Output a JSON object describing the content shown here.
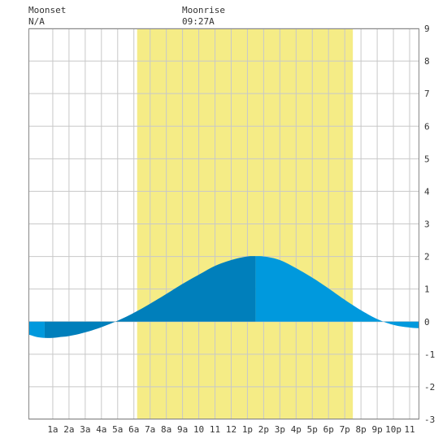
{
  "header": {
    "moonset_label": "Moonset",
    "moonset_time": "N/A",
    "moonrise_label": "Moonrise",
    "moonrise_time": "09:27A"
  },
  "chart_data": {
    "type": "area",
    "title": "",
    "xlabel": "",
    "ylabel": "",
    "x_unit": "hour of day",
    "xlim": [
      -0.5,
      23.6
    ],
    "ylim": [
      -3,
      9
    ],
    "y_ticks": [
      "9",
      "8",
      "7",
      "6",
      "5",
      "4",
      "3",
      "2",
      "1",
      "0",
      "-1",
      "-2",
      "-3"
    ],
    "x_ticks": [
      {
        "x": 1,
        "label": "1a"
      },
      {
        "x": 2,
        "label": "2a"
      },
      {
        "x": 3,
        "label": "3a"
      },
      {
        "x": 4,
        "label": "4a"
      },
      {
        "x": 5,
        "label": "5a"
      },
      {
        "x": 6,
        "label": "6a"
      },
      {
        "x": 7,
        "label": "7a"
      },
      {
        "x": 8,
        "label": "8a"
      },
      {
        "x": 9,
        "label": "9a"
      },
      {
        "x": 10,
        "label": "10"
      },
      {
        "x": 11,
        "label": "11"
      },
      {
        "x": 12,
        "label": "12"
      },
      {
        "x": 13,
        "label": "1p"
      },
      {
        "x": 14,
        "label": "2p"
      },
      {
        "x": 15,
        "label": "3p"
      },
      {
        "x": 16,
        "label": "4p"
      },
      {
        "x": 17,
        "label": "5p"
      },
      {
        "x": 18,
        "label": "6p"
      },
      {
        "x": 19,
        "label": "7p"
      },
      {
        "x": 20,
        "label": "8p"
      },
      {
        "x": 21,
        "label": "9p"
      },
      {
        "x": 22,
        "label": "10p"
      },
      {
        "x": 23,
        "label": "11"
      }
    ],
    "daylight": {
      "start": 6.2,
      "end": 19.5,
      "color": "#f5ec86"
    },
    "series": [
      {
        "x": [
          -0.5,
          0,
          0.5,
          1,
          1.5,
          2,
          3,
          4,
          5,
          6,
          7,
          8,
          9,
          10,
          11,
          12,
          13,
          13.5,
          14,
          15,
          16,
          17,
          18,
          19,
          20,
          21,
          22,
          23,
          23.6
        ],
        "values": [
          -0.4,
          -0.47,
          -0.5,
          -0.5,
          -0.47,
          -0.44,
          -0.33,
          -0.17,
          0.03,
          0.27,
          0.55,
          0.85,
          1.16,
          1.44,
          1.71,
          1.89,
          2.0,
          2.01,
          2.0,
          1.89,
          1.64,
          1.35,
          1.02,
          0.67,
          0.35,
          0.08,
          -0.1,
          -0.18,
          -0.2
        ]
      }
    ],
    "shading_segments": [
      {
        "from": -0.5,
        "to": 0.5,
        "color": "#0099dd"
      },
      {
        "from": 0.5,
        "to": 13.5,
        "color": "#007fbb"
      },
      {
        "from": 13.5,
        "to": 23.6,
        "color": "#0099dd"
      }
    ],
    "colors": {
      "grid": "#c8c8c8",
      "background": "#ffffff",
      "border": "#888888"
    }
  }
}
